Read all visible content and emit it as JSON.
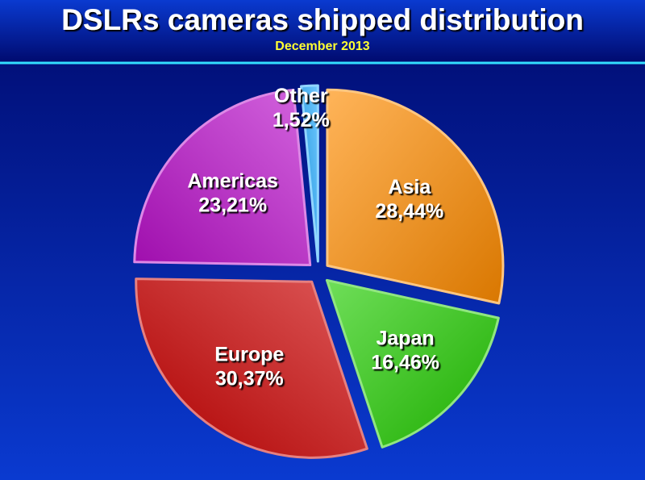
{
  "chart_data": {
    "type": "pie",
    "title": "DSLRs cameras shipped distribution",
    "subtitle": "December 2013",
    "categories": [
      "Asia",
      "Japan",
      "Europe",
      "Americas",
      "Other"
    ],
    "values": [
      28.44,
      16.46,
      30.37,
      23.21,
      1.52
    ],
    "value_labels": [
      "28,44%",
      "16,46%",
      "30,37%",
      "23,21%",
      "1,52%"
    ],
    "colors": [
      "#ff8c00",
      "#22cc00",
      "#cc0000",
      "#bb11cc",
      "#22aaff"
    ]
  }
}
